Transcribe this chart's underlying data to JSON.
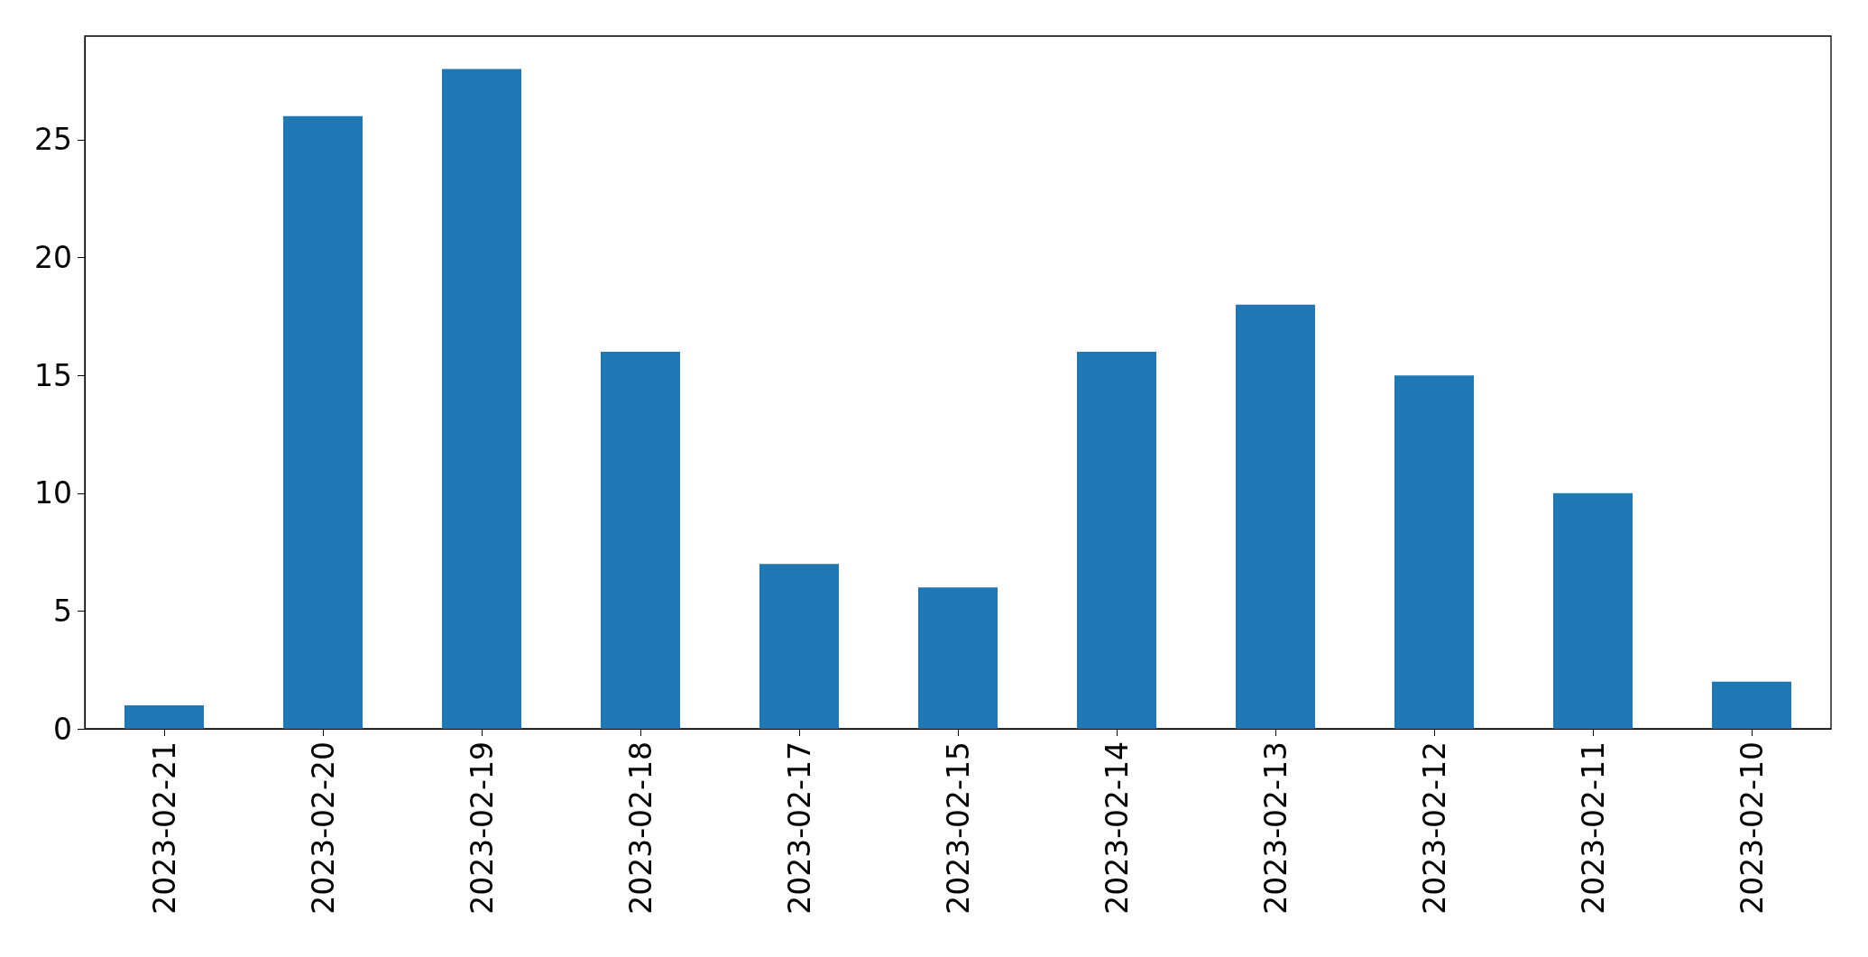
{
  "chart_data": {
    "type": "bar",
    "categories": [
      "2023-02-21",
      "2023-02-20",
      "2023-02-19",
      "2023-02-18",
      "2023-02-17",
      "2023-02-15",
      "2023-02-14",
      "2023-02-13",
      "2023-02-12",
      "2023-02-11",
      "2023-02-10"
    ],
    "values": [
      1,
      26,
      28,
      16,
      7,
      6,
      16,
      18,
      15,
      10,
      2
    ],
    "color": "#1f77b4",
    "ylim": [
      0,
      29.4
    ],
    "yticks": [
      0,
      5,
      10,
      15,
      20,
      25
    ],
    "grid": false
  }
}
